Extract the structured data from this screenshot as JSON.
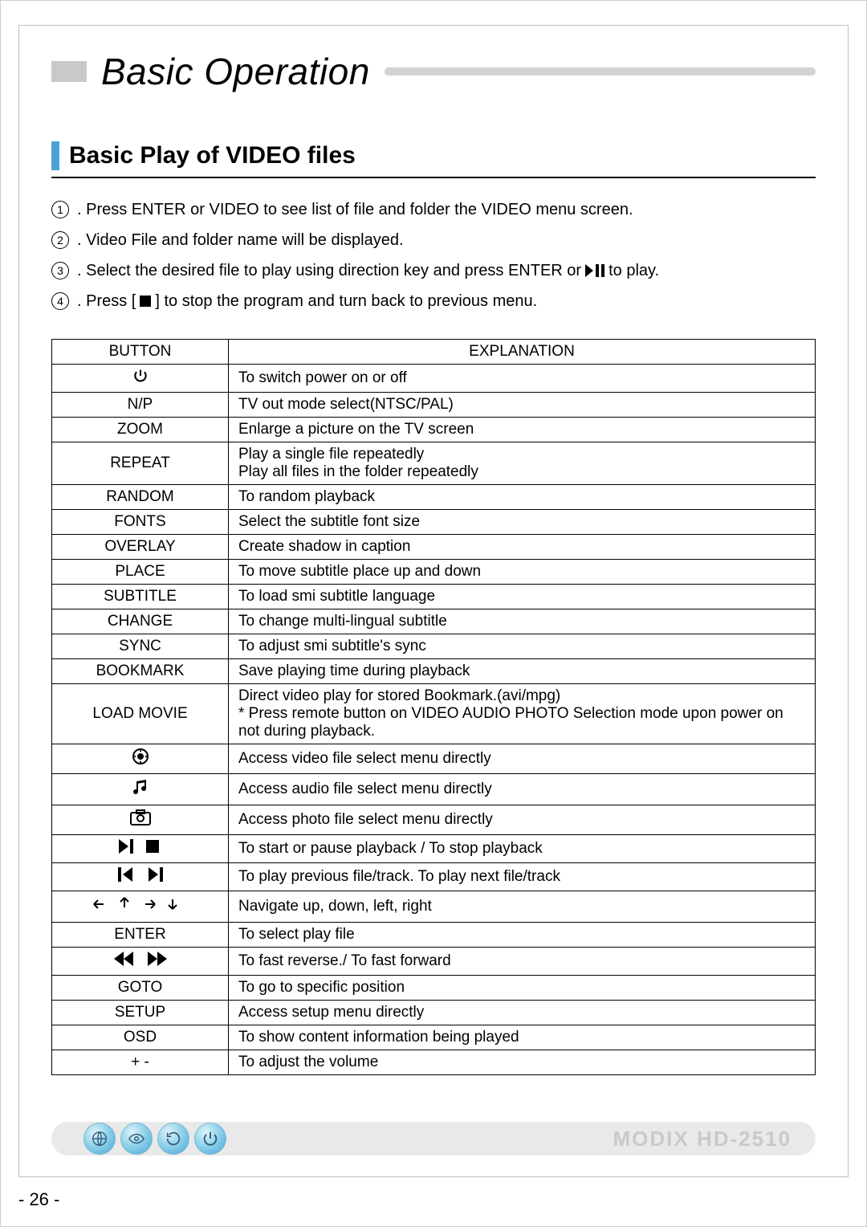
{
  "title": "Basic Operation",
  "subtitle": "Basic Play of VIDEO files",
  "steps": [
    {
      "num": "1",
      "before": ". Press ENTER or VIDEO to see list of file and folder the VIDEO menu screen.",
      "icon": null,
      "after": ""
    },
    {
      "num": "2",
      "before": ". Video File and folder name will be displayed.",
      "icon": null,
      "after": ""
    },
    {
      "num": "3",
      "before": ". Select the desired file to play using direction key and press ENTER or ",
      "icon": "play-pause",
      "after": " to play."
    },
    {
      "num": "4",
      "before": ". Press [",
      "icon": "stop",
      "after": "] to stop the program and turn back to previous menu."
    }
  ],
  "table": {
    "header_button": "BUTTON",
    "header_explanation": "EXPLANATION",
    "rows": [
      {
        "button_type": "icon",
        "icon": "power",
        "explanation": "To switch power on or off"
      },
      {
        "button_type": "text",
        "label": "N/P",
        "explanation": "TV out mode select(NTSC/PAL)"
      },
      {
        "button_type": "text",
        "label": "ZOOM",
        "explanation": "Enlarge a picture on the TV screen"
      },
      {
        "button_type": "text",
        "label": "REPEAT",
        "explanation": "Play a single file repeatedly\nPlay all files in the folder repeatedly"
      },
      {
        "button_type": "text",
        "label": "RANDOM",
        "explanation": "To random playback"
      },
      {
        "button_type": "text",
        "label": "FONTS",
        "explanation": "Select the subtitle font size"
      },
      {
        "button_type": "text",
        "label": "OVERLAY",
        "explanation": "Create shadow in caption"
      },
      {
        "button_type": "text",
        "label": "PLACE",
        "explanation": "To move subtitle place up and down"
      },
      {
        "button_type": "text",
        "label": "SUBTITLE",
        "explanation": "To load smi subtitle language"
      },
      {
        "button_type": "text",
        "label": "CHANGE",
        "explanation": "To change multi-lingual subtitle"
      },
      {
        "button_type": "text",
        "label": "SYNC",
        "explanation": "To adjust smi subtitle's sync"
      },
      {
        "button_type": "text",
        "label": "BOOKMARK",
        "explanation": "Save playing time during playback"
      },
      {
        "button_type": "text",
        "label": "LOAD MOVIE",
        "explanation": "Direct video play for stored Bookmark.(avi/mpg)\n* Press remote button on VIDEO AUDIO PHOTO Selection mode upon power on not during playback."
      },
      {
        "button_type": "icon",
        "icon": "video",
        "explanation": "Access video file select menu directly"
      },
      {
        "button_type": "icon",
        "icon": "audio",
        "explanation": "Access audio file select menu directly"
      },
      {
        "button_type": "icon",
        "icon": "photo",
        "explanation": "Access photo file select menu directly"
      },
      {
        "button_type": "icon",
        "icon": "play-stop",
        "explanation": "To start or pause playback / To stop playback"
      },
      {
        "button_type": "icon",
        "icon": "prev-next",
        "explanation": "To play previous file/track. To play next file/track"
      },
      {
        "button_type": "icon",
        "icon": "arrows",
        "explanation": "Navigate up, down, left, right"
      },
      {
        "button_type": "text",
        "label": "ENTER",
        "explanation": "To select play file"
      },
      {
        "button_type": "icon",
        "icon": "rew-ff",
        "explanation": "To fast reverse./ To fast forward"
      },
      {
        "button_type": "text",
        "label": "GOTO",
        "explanation": "To go to specific position"
      },
      {
        "button_type": "text",
        "label": "SETUP",
        "explanation": "Access setup menu directly"
      },
      {
        "button_type": "text",
        "label": "OSD",
        "explanation": "To show content information being played"
      },
      {
        "button_type": "text",
        "label": "+  -",
        "explanation": "To adjust the volume"
      }
    ]
  },
  "footer_brand": "MODIX HD-2510",
  "page_number": "-  26  -",
  "colors": {
    "accent": "#4aa3d6",
    "grey_block": "#c9c9c9",
    "title_line": "#d2d2d2",
    "footer_bg": "#e9e9e9",
    "brand_text": "#c9c9c9"
  }
}
